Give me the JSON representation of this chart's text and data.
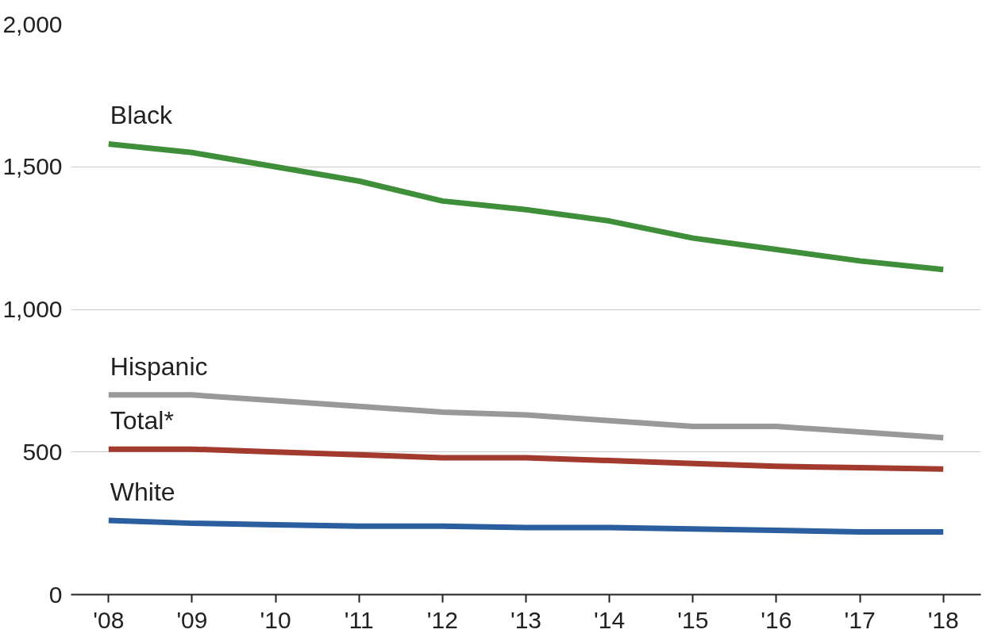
{
  "chart_data": {
    "type": "line",
    "categories": [
      "'08",
      "'09",
      "'10",
      "'11",
      "'12",
      "'13",
      "'14",
      "'15",
      "'16",
      "'17",
      "'18"
    ],
    "series": [
      {
        "name": "Black",
        "color": "#3e8e3a",
        "values": [
          1580,
          1550,
          1500,
          1450,
          1380,
          1350,
          1310,
          1250,
          1210,
          1170,
          1140
        ]
      },
      {
        "name": "Hispanic",
        "color": "#999999",
        "values": [
          700,
          700,
          680,
          660,
          640,
          630,
          610,
          590,
          590,
          570,
          550
        ]
      },
      {
        "name": "Total*",
        "color": "#a33a2e",
        "values": [
          510,
          510,
          500,
          490,
          480,
          480,
          470,
          460,
          450,
          445,
          440
        ]
      },
      {
        "name": "White",
        "color": "#2a5e9e",
        "values": [
          260,
          250,
          245,
          240,
          240,
          235,
          235,
          230,
          225,
          220,
          220
        ]
      }
    ],
    "ylim": [
      0,
      2000
    ],
    "yticks": [
      0,
      {
        "value": 500,
        "label": "500"
      },
      {
        "value": 1000,
        "label": "1,000"
      },
      {
        "value": 1500,
        "label": "1,500"
      },
      {
        "value": 2000,
        "label": "2,000"
      }
    ],
    "grid": "y",
    "marker": "none",
    "line_style": "solid"
  }
}
